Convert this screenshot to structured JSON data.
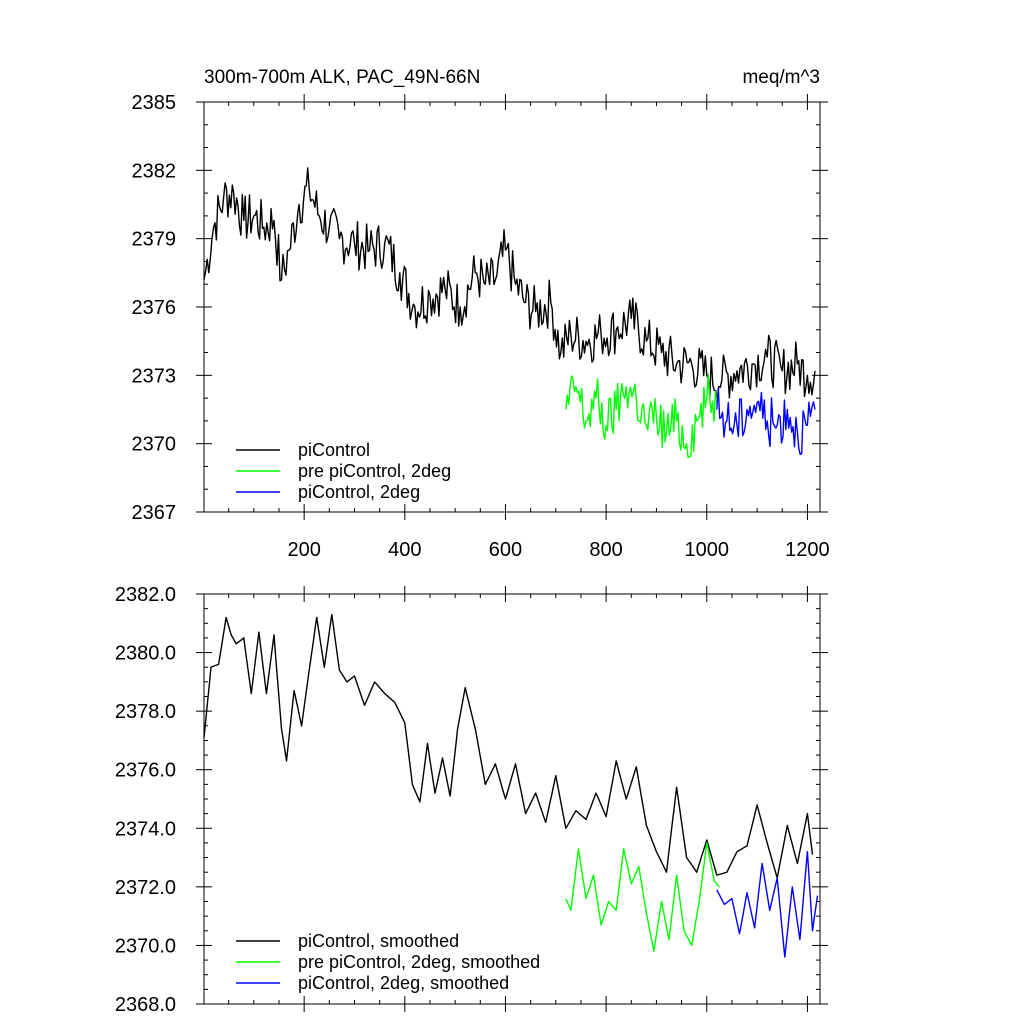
{
  "figure": {
    "title_left": "300m-700m ALK, PAC_49N-66N",
    "title_right": "meq/m^3"
  },
  "colors": {
    "picontrol": "#000000",
    "pre_picontrol_2deg": "#00ff00",
    "picontrol_2deg": "#0000ff",
    "axis": "#000000"
  },
  "chart_data": [
    {
      "type": "line",
      "id": "raw",
      "title": "300m-700m ALK, PAC_49N-66N",
      "units": "meq/m^3",
      "xlim": [
        1,
        1225
      ],
      "ylim": [
        2367,
        2385
      ],
      "xticks": [
        200,
        400,
        600,
        800,
        1000,
        1200
      ],
      "xtick_labels": [
        "200",
        "400",
        "600",
        "800",
        "1000",
        "1200"
      ],
      "yticks": [
        2367,
        2370,
        2373,
        2376,
        2379,
        2382,
        2385
      ],
      "ytick_labels": [
        "2367",
        "2370",
        "2373",
        "2376",
        "2379",
        "2382",
        "2385"
      ],
      "legend": [
        "piControl",
        "pre piControl, 2deg",
        "piControl, 2deg"
      ],
      "legend_position": "bottom-left",
      "series": [
        {
          "name": "piControl",
          "color": "#000000",
          "x": [
            1,
            20,
            40,
            60,
            80,
            100,
            120,
            140,
            155,
            170,
            190,
            210,
            230,
            250,
            270,
            300,
            330,
            360,
            390,
            420,
            450,
            480,
            510,
            540,
            560,
            580,
            600,
            620,
            640,
            660,
            690,
            710,
            730,
            760,
            790,
            820,
            850,
            880,
            910,
            940,
            970,
            1000,
            1030,
            1060,
            1090,
            1120,
            1150,
            1180,
            1200,
            1215
          ],
          "values": [
            2377.2,
            2379.5,
            2380.8,
            2381.0,
            2379.8,
            2380.0,
            2379.5,
            2379.8,
            2377.2,
            2378.5,
            2380.5,
            2381.2,
            2380.0,
            2379.5,
            2379.0,
            2378.8,
            2378.5,
            2378.8,
            2377.5,
            2376.0,
            2376.5,
            2376.8,
            2376.0,
            2377.5,
            2377.0,
            2377.2,
            2378.5,
            2377.0,
            2376.2,
            2375.8,
            2376.2,
            2374.0,
            2374.8,
            2374.5,
            2374.8,
            2375.0,
            2375.5,
            2374.5,
            2374.0,
            2373.5,
            2373.5,
            2373.0,
            2372.8,
            2373.2,
            2373.5,
            2373.8,
            2373.2,
            2373.5,
            2373.0,
            2373.2
          ]
        },
        {
          "name": "pre piControl, 2deg",
          "color": "#00ff00",
          "x": [
            720,
            740,
            760,
            780,
            800,
            820,
            840,
            860,
            880,
            900,
            920,
            940,
            960,
            980,
            1000,
            1020
          ],
          "values": [
            2371.5,
            2372.5,
            2371.0,
            2372.0,
            2370.8,
            2371.5,
            2372.5,
            2372.0,
            2370.8,
            2371.2,
            2370.5,
            2371.0,
            2370.0,
            2371.0,
            2372.0,
            2371.8
          ]
        },
        {
          "name": "piControl, 2deg",
          "color": "#0000ff",
          "x": [
            1020,
            1040,
            1060,
            1080,
            1100,
            1120,
            1140,
            1160,
            1180,
            1200,
            1215
          ],
          "values": [
            2371.5,
            2371.0,
            2370.8,
            2371.5,
            2371.8,
            2371.0,
            2370.8,
            2371.5,
            2370.5,
            2370.8,
            2371.5
          ]
        }
      ]
    },
    {
      "type": "line",
      "id": "smoothed",
      "xlim": [
        1,
        1225
      ],
      "ylim": [
        2368,
        2382
      ],
      "xticks": [
        200,
        400,
        600,
        800,
        1000,
        1200
      ],
      "yticks": [
        2368,
        2370,
        2372,
        2374,
        2376,
        2378,
        2380,
        2382
      ],
      "ytick_labels": [
        "2368.0",
        "2370.0",
        "2372.0",
        "2374.0",
        "2376.0",
        "2378.0",
        "2380.0",
        "2382.0"
      ],
      "legend": [
        "piControl, smoothed",
        "pre piControl, 2deg, smoothed",
        "piControl, 2deg, smoothed"
      ],
      "legend_position": "bottom-left",
      "series": [
        {
          "name": "piControl, smoothed",
          "color": "#000000",
          "x": [
            1,
            15,
            30,
            45,
            55,
            65,
            80,
            95,
            110,
            125,
            140,
            155,
            165,
            180,
            195,
            210,
            225,
            240,
            255,
            270,
            285,
            300,
            320,
            340,
            360,
            380,
            400,
            415,
            430,
            445,
            460,
            475,
            490,
            505,
            520,
            540,
            560,
            580,
            600,
            620,
            640,
            660,
            680,
            700,
            720,
            740,
            760,
            780,
            800,
            820,
            840,
            860,
            880,
            900,
            920,
            940,
            960,
            980,
            1000,
            1020,
            1040,
            1060,
            1080,
            1100,
            1120,
            1140,
            1160,
            1180,
            1200,
            1210
          ],
          "values": [
            2377.1,
            2379.5,
            2379.6,
            2381.2,
            2380.6,
            2380.3,
            2380.5,
            2378.6,
            2380.7,
            2378.6,
            2380.6,
            2377.4,
            2376.3,
            2378.7,
            2377.5,
            2379.4,
            2381.2,
            2379.5,
            2381.3,
            2379.4,
            2379.0,
            2379.2,
            2378.2,
            2379.0,
            2378.6,
            2378.3,
            2377.6,
            2375.5,
            2374.9,
            2376.9,
            2375.2,
            2376.4,
            2375.1,
            2377.4,
            2378.8,
            2377.4,
            2375.5,
            2376.2,
            2375.0,
            2376.2,
            2374.5,
            2375.2,
            2374.2,
            2375.8,
            2374.0,
            2374.6,
            2374.3,
            2375.2,
            2374.4,
            2376.3,
            2375.0,
            2376.1,
            2374.1,
            2373.2,
            2372.5,
            2375.4,
            2373.0,
            2372.5,
            2373.6,
            2372.4,
            2372.5,
            2373.2,
            2373.4,
            2374.8,
            2373.5,
            2372.3,
            2374.1,
            2372.8,
            2374.5,
            2373.1
          ]
        },
        {
          "name": "pre piControl, 2deg, smoothed",
          "color": "#00ff00",
          "x": [
            720,
            730,
            745,
            760,
            775,
            790,
            805,
            820,
            835,
            850,
            865,
            880,
            895,
            910,
            925,
            940,
            955,
            970,
            985,
            1000,
            1015,
            1025
          ],
          "values": [
            2371.6,
            2371.2,
            2373.3,
            2371.6,
            2372.4,
            2370.7,
            2371.5,
            2371.2,
            2373.3,
            2372.1,
            2372.7,
            2371.1,
            2369.8,
            2371.5,
            2370.2,
            2372.4,
            2370.5,
            2370.0,
            2371.5,
            2373.5,
            2372.2,
            2372.0
          ]
        },
        {
          "name": "piControl, 2deg, smoothed",
          "color": "#0000ff",
          "x": [
            1020,
            1035,
            1050,
            1065,
            1080,
            1095,
            1110,
            1125,
            1140,
            1155,
            1170,
            1185,
            1200,
            1210,
            1220
          ],
          "values": [
            2371.9,
            2371.4,
            2371.6,
            2370.4,
            2371.8,
            2370.6,
            2372.8,
            2371.2,
            2372.3,
            2369.6,
            2372.0,
            2370.2,
            2373.2,
            2370.5,
            2371.7
          ]
        }
      ]
    }
  ]
}
